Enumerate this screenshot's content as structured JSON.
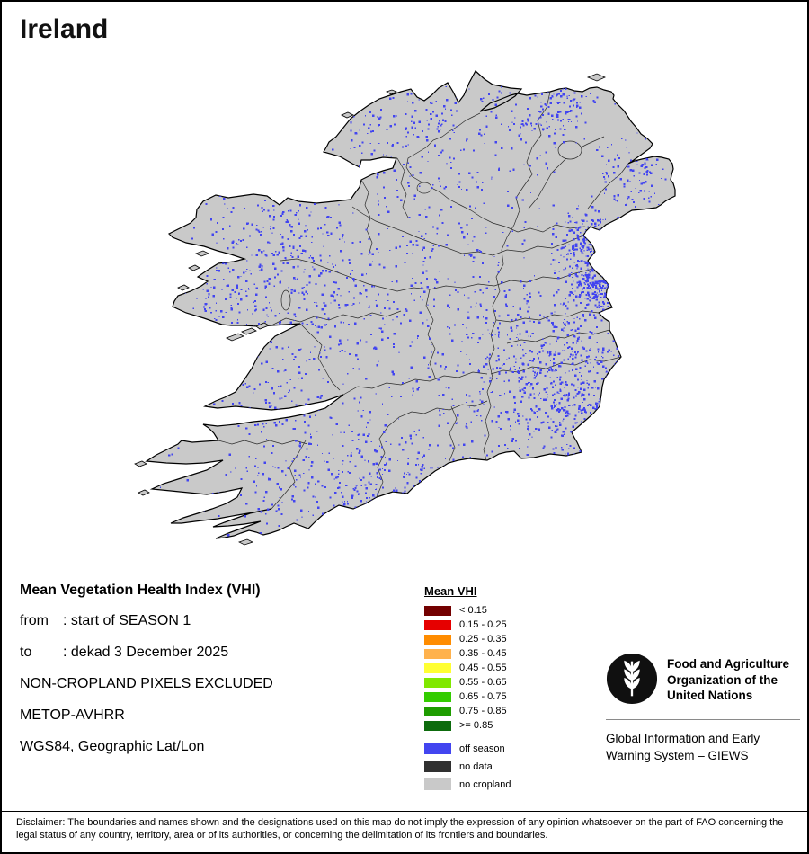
{
  "title": "Ireland",
  "map": {
    "region_name": "Ireland",
    "land_color": "#c9c9c9",
    "outline_color": "#000000",
    "off_season_color": "#4245f0",
    "sea_color": "#ffffff"
  },
  "meta": {
    "heading": "Mean Vegetation Health Index (VHI)",
    "rows": [
      {
        "label": "from",
        "value": ": start of SEASON 1"
      },
      {
        "label": "to",
        "value": ": dekad 3 December 2025"
      }
    ],
    "lines": [
      "NON-CROPLAND PIXELS EXCLUDED",
      "METOP-AVHRR",
      "WGS84, Geographic Lat/Lon"
    ]
  },
  "legend": {
    "title": "Mean VHI",
    "classes": [
      {
        "label": "< 0.15",
        "color": "#730000"
      },
      {
        "label": "0.15 - 0.25",
        "color": "#e60000"
      },
      {
        "label": "0.25 - 0.35",
        "color": "#ff8c00"
      },
      {
        "label": "0.35 - 0.45",
        "color": "#ffb24d"
      },
      {
        "label": "0.45 - 0.55",
        "color": "#ffff33"
      },
      {
        "label": "0.55 - 0.65",
        "color": "#80e800"
      },
      {
        "label": "0.65 - 0.75",
        "color": "#33cc00"
      },
      {
        "label": "0.75 - 0.85",
        "color": "#1e9c00"
      },
      {
        "label": ">= 0.85",
        "color": "#0d6b0d"
      }
    ],
    "extra": [
      {
        "label": "off season",
        "color": "#4245f0"
      },
      {
        "label": "no data",
        "color": "#303030"
      },
      {
        "label": "no cropland",
        "color": "#c9c9c9"
      }
    ]
  },
  "fao": {
    "org_lines": [
      "Food and Agriculture",
      "Organization of the",
      "United Nations"
    ],
    "giews_lines": [
      "Global Information and Early",
      "Warning System – GIEWS"
    ]
  },
  "disclaimer": "Disclaimer: The boundaries and names shown and the designations used on this map do not imply the expression of any opinion whatsoever on the part of FAO concerning the legal status of any country, territory, area or of its authorities, or concerning the delimitation of its frontiers and boundaries."
}
